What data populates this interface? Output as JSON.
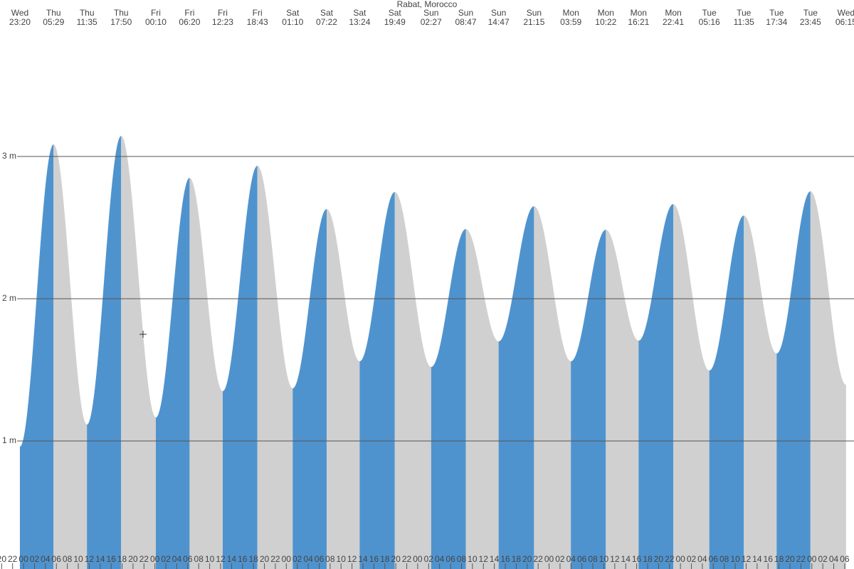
{
  "chart_data": {
    "type": "tide",
    "title": "Rabat, Morocco",
    "x": [
      23.333,
      29.483,
      35.583,
      41.833,
      48.167,
      54.333,
      60.383,
      66.717,
      73.167,
      79.367,
      85.4,
      91.817,
      98.45,
      104.783,
      110.783,
      117.25,
      123.983,
      130.367,
      136.35,
      142.683,
      149.267,
      155.583,
      161.567,
      167.75,
      174.25
    ],
    "values": [
      0.96,
      3.085,
      1.115,
      3.145,
      1.165,
      2.85,
      1.35,
      2.935,
      1.37,
      2.63,
      1.56,
      2.75,
      1.52,
      2.49,
      1.7,
      2.65,
      1.56,
      2.485,
      1.705,
      2.665,
      1.495,
      2.585,
      1.615,
      2.755,
      1.395
    ],
    "day_labels": [
      "Wed",
      "Thu",
      "Thu",
      "Thu",
      "Fri",
      "Fri",
      "Fri",
      "Fri",
      "Sat",
      "Sat",
      "Sat",
      "Sat",
      "Sun",
      "Sun",
      "Sun",
      "Sun",
      "Mon",
      "Mon",
      "Mon",
      "Mon",
      "Tue",
      "Tue",
      "Tue",
      "Tue",
      "Wed"
    ],
    "time_labels": [
      "23:20",
      "05:29",
      "11:35",
      "17:50",
      "00:10",
      "06:20",
      "12:23",
      "18:43",
      "01:10",
      "07:22",
      "13:24",
      "19:49",
      "02:27",
      "08:47",
      "14:47",
      "21:15",
      "03:59",
      "10:22",
      "16:21",
      "22:41",
      "05:16",
      "11:35",
      "17:34",
      "23:45",
      "06:15"
    ],
    "rising_color": "#4f93ce",
    "falling_color": "#d0d0d0",
    "xlim": [
      19.7,
      175.7
    ],
    "ylim": [
      0.1,
      4.1
    ],
    "yticks": [
      {
        "value": 1,
        "label": "1 m"
      },
      {
        "value": 2,
        "label": "2 m"
      },
      {
        "value": 3,
        "label": "3 m"
      }
    ],
    "grid": true,
    "xticks": [
      {
        "value": 20,
        "label": "20"
      },
      {
        "value": 22,
        "label": "22"
      },
      {
        "value": 24,
        "label": "00"
      },
      {
        "value": 26,
        "label": "02"
      },
      {
        "value": 28,
        "label": "04"
      },
      {
        "value": 30,
        "label": "06"
      },
      {
        "value": 32,
        "label": "08"
      },
      {
        "value": 34,
        "label": "10"
      },
      {
        "value": 36,
        "label": "12"
      },
      {
        "value": 38,
        "label": "14"
      },
      {
        "value": 40,
        "label": "16"
      },
      {
        "value": 42,
        "label": "18"
      },
      {
        "value": 44,
        "label": "20"
      },
      {
        "value": 46,
        "label": "22"
      },
      {
        "value": 48,
        "label": "00"
      },
      {
        "value": 50,
        "label": "02"
      },
      {
        "value": 52,
        "label": "04"
      },
      {
        "value": 54,
        "label": "06"
      },
      {
        "value": 56,
        "label": "08"
      },
      {
        "value": 58,
        "label": "10"
      },
      {
        "value": 60,
        "label": "12"
      },
      {
        "value": 62,
        "label": "14"
      },
      {
        "value": 64,
        "label": "16"
      },
      {
        "value": 66,
        "label": "18"
      },
      {
        "value": 68,
        "label": "20"
      },
      {
        "value": 70,
        "label": "22"
      },
      {
        "value": 72,
        "label": "00"
      },
      {
        "value": 74,
        "label": "02"
      },
      {
        "value": 76,
        "label": "04"
      },
      {
        "value": 78,
        "label": "06"
      },
      {
        "value": 80,
        "label": "08"
      },
      {
        "value": 82,
        "label": "10"
      },
      {
        "value": 84,
        "label": "12"
      },
      {
        "value": 86,
        "label": "14"
      },
      {
        "value": 88,
        "label": "16"
      },
      {
        "value": 90,
        "label": "18"
      },
      {
        "value": 92,
        "label": "20"
      },
      {
        "value": 94,
        "label": "22"
      },
      {
        "value": 96,
        "label": "00"
      },
      {
        "value": 98,
        "label": "02"
      },
      {
        "value": 100,
        "label": "04"
      },
      {
        "value": 102,
        "label": "06"
      },
      {
        "value": 104,
        "label": "08"
      },
      {
        "value": 106,
        "label": "10"
      },
      {
        "value": 108,
        "label": "12"
      },
      {
        "value": 110,
        "label": "14"
      },
      {
        "value": 112,
        "label": "16"
      },
      {
        "value": 114,
        "label": "18"
      },
      {
        "value": 116,
        "label": "20"
      },
      {
        "value": 118,
        "label": "22"
      },
      {
        "value": 120,
        "label": "00"
      },
      {
        "value": 122,
        "label": "02"
      },
      {
        "value": 124,
        "label": "04"
      },
      {
        "value": 126,
        "label": "06"
      },
      {
        "value": 128,
        "label": "08"
      },
      {
        "value": 130,
        "label": "10"
      },
      {
        "value": 132,
        "label": "12"
      },
      {
        "value": 134,
        "label": "14"
      },
      {
        "value": 136,
        "label": "16"
      },
      {
        "value": 138,
        "label": "18"
      },
      {
        "value": 140,
        "label": "20"
      },
      {
        "value": 142,
        "label": "22"
      },
      {
        "value": 144,
        "label": "00"
      },
      {
        "value": 146,
        "label": "02"
      },
      {
        "value": 148,
        "label": "04"
      },
      {
        "value": 150,
        "label": "06"
      },
      {
        "value": 152,
        "label": "08"
      },
      {
        "value": 154,
        "label": "10"
      },
      {
        "value": 156,
        "label": "12"
      },
      {
        "value": 158,
        "label": "14"
      },
      {
        "value": 160,
        "label": "16"
      },
      {
        "value": 162,
        "label": "18"
      },
      {
        "value": 164,
        "label": "20"
      },
      {
        "value": 166,
        "label": "22"
      },
      {
        "value": 168,
        "label": "00"
      },
      {
        "value": 170,
        "label": "02"
      },
      {
        "value": 172,
        "label": "04"
      },
      {
        "value": 174,
        "label": "06"
      }
    ]
  }
}
